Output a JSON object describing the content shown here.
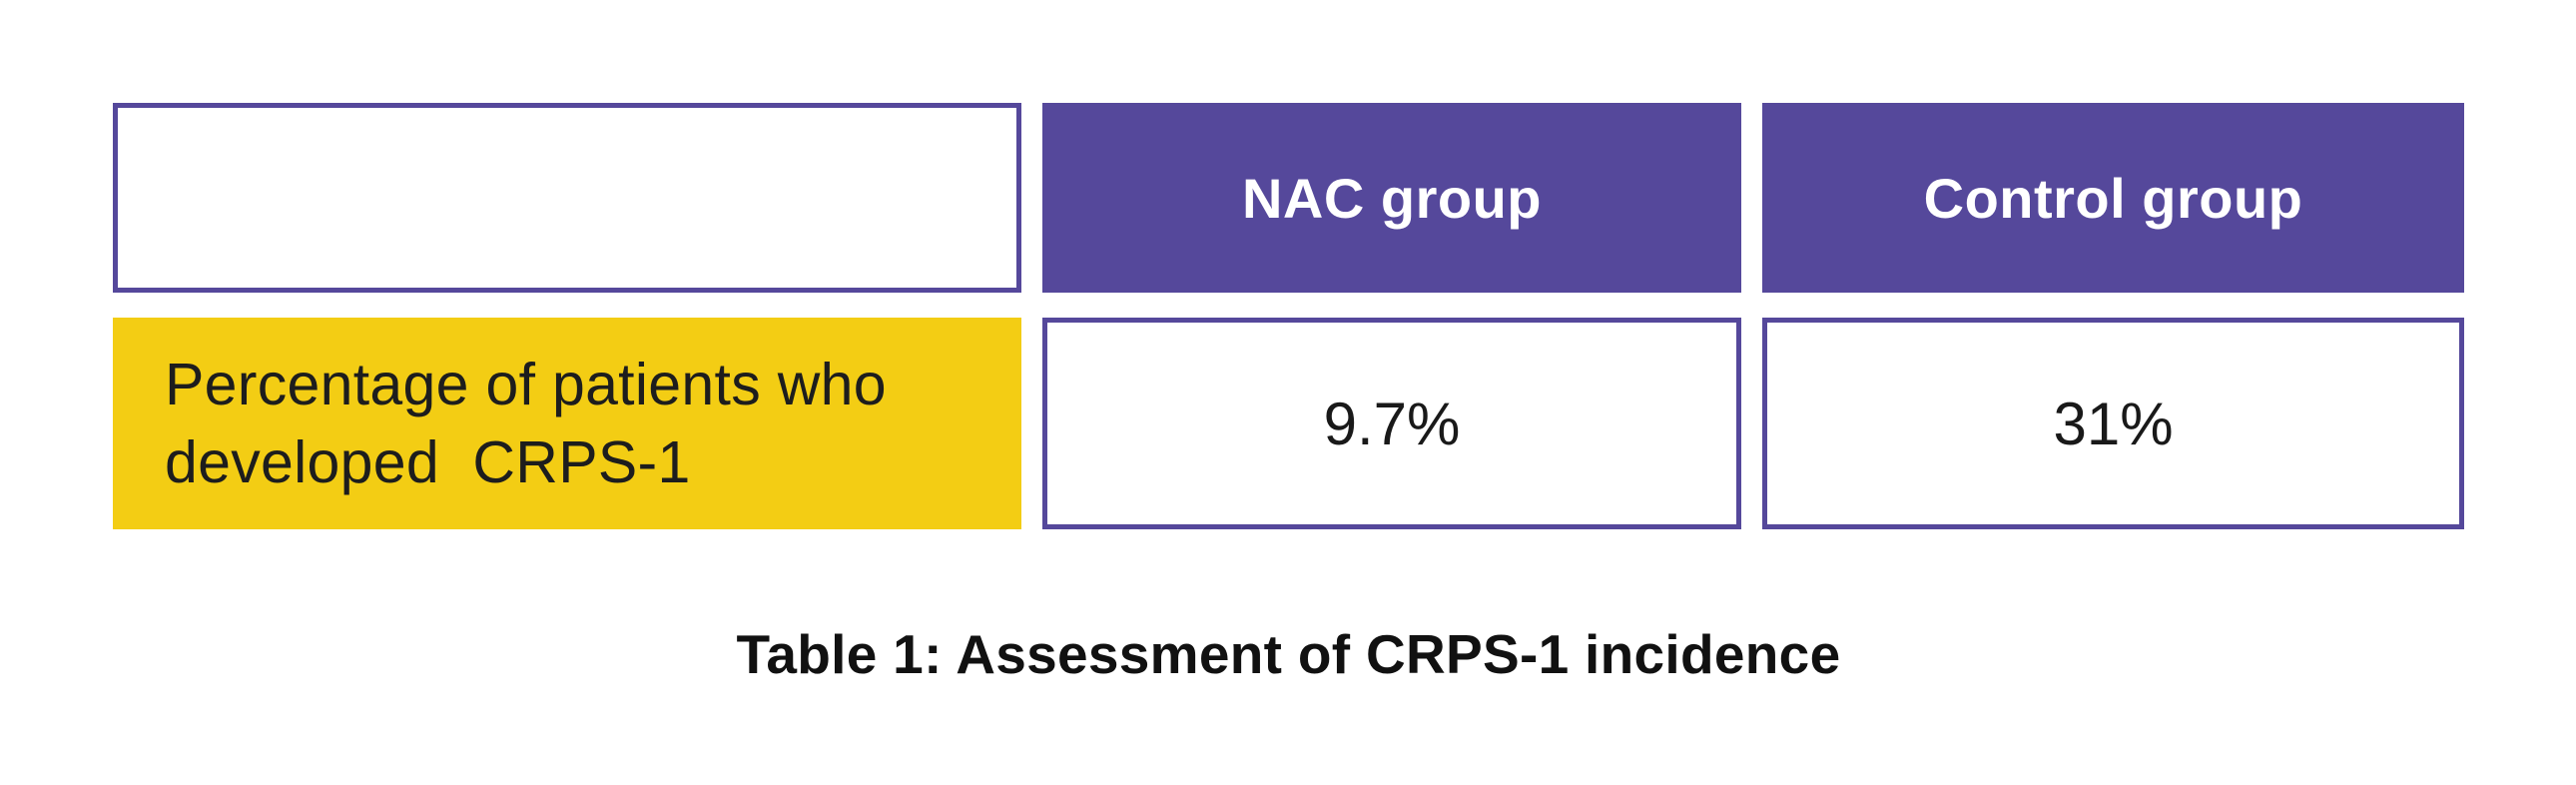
{
  "colors": {
    "header_fill": "#55489B",
    "cell_border": "#55489B",
    "label_fill": "#F3CD14",
    "header_text": "#FFFFFF",
    "body_text": "#1D1D1D",
    "page_background": "#FFFFFF"
  },
  "table": {
    "columns": [
      {
        "label": ""
      },
      {
        "label": "NAC group"
      },
      {
        "label": "Control group"
      }
    ],
    "rows": [
      {
        "label": "Percentage of patients who\ndeveloped  CRPS-1",
        "values": [
          "9.7%",
          "31%"
        ]
      }
    ]
  },
  "caption": "Table 1: Assessment of CRPS-1 incidence",
  "chart_data": {
    "type": "table",
    "title": "Table 1: Assessment of CRPS-1 incidence",
    "columns": [
      "",
      "NAC group",
      "Control group"
    ],
    "rows": [
      [
        "Percentage of patients who developed CRPS-1",
        "9.7%",
        "31%"
      ]
    ],
    "values_numeric_percent": {
      "NAC group": 9.7,
      "Control group": 31
    }
  }
}
